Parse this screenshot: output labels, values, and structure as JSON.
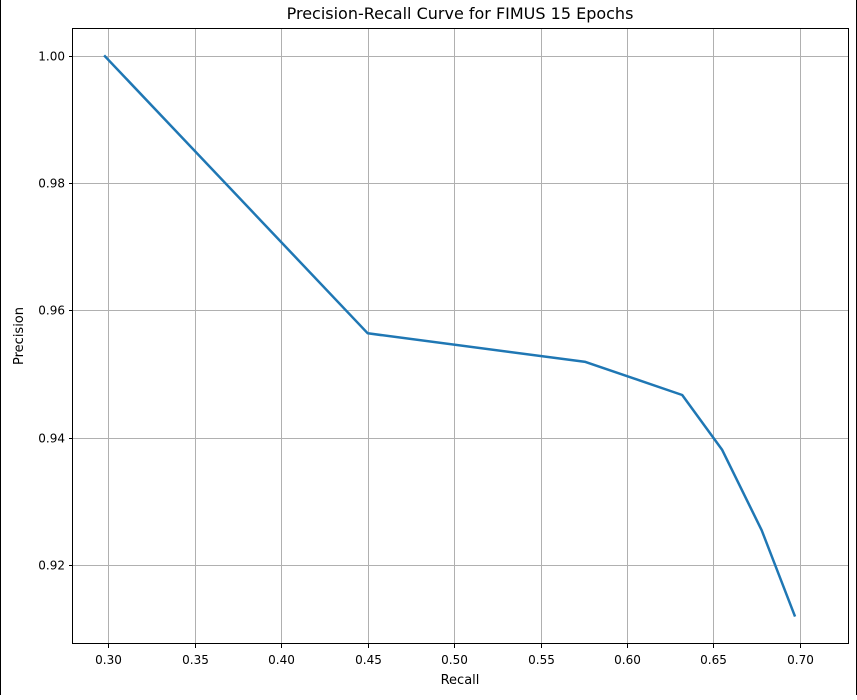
{
  "chart_data": {
    "type": "line",
    "title": "Precision-Recall Curve for FIMUS 15 Epochs",
    "xlabel": "Recall",
    "ylabel": "Precision",
    "xlim": [
      0.2795,
      0.7285
    ],
    "ylim": [
      0.9075,
      1.0043
    ],
    "xticks": [
      0.3,
      0.35,
      0.4,
      0.45,
      0.5,
      0.55,
      0.6,
      0.65,
      0.7
    ],
    "xtick_labels": [
      "0.30",
      "0.35",
      "0.40",
      "0.45",
      "0.50",
      "0.55",
      "0.60",
      "0.65",
      "0.70"
    ],
    "yticks": [
      0.92,
      0.94,
      0.96,
      0.98,
      1.0
    ],
    "ytick_labels": [
      "0.92",
      "0.94",
      "0.96",
      "0.98",
      "1.00"
    ],
    "grid": true,
    "series": [
      {
        "color": "#1f77b4",
        "x": [
          0.298,
          0.45,
          0.576,
          0.632,
          0.655,
          0.678,
          0.697
        ],
        "y": [
          1.0,
          0.9564,
          0.9519,
          0.9467,
          0.9381,
          0.9254,
          0.912
        ]
      }
    ]
  }
}
